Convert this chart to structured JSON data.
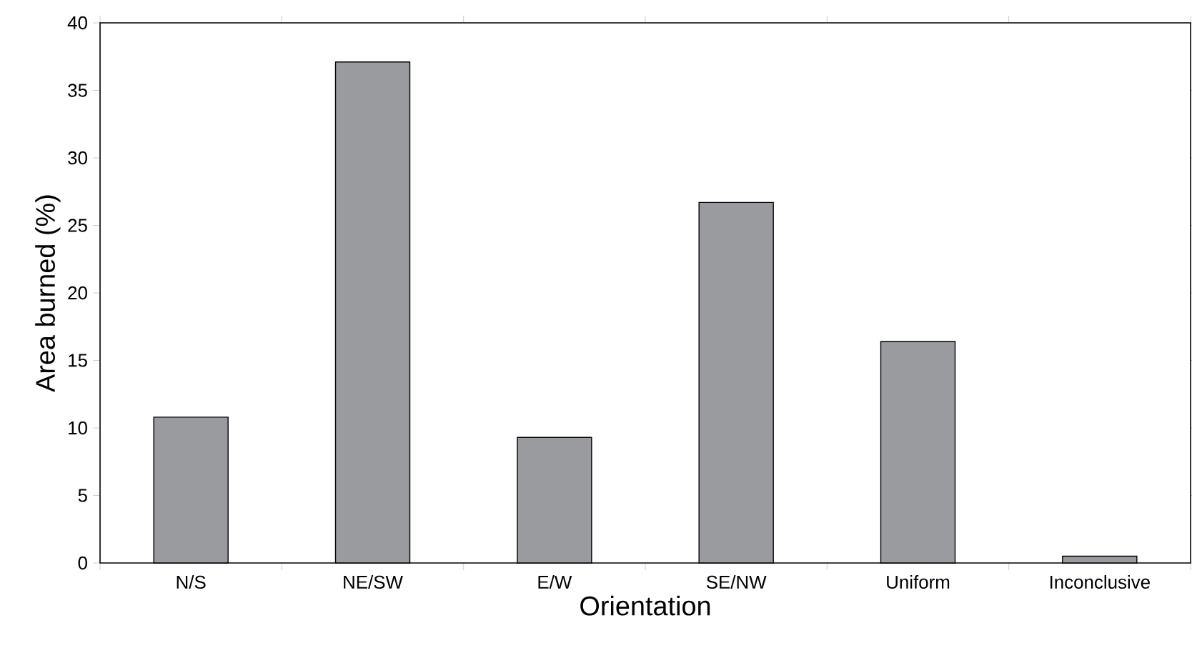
{
  "chart_data": {
    "type": "bar",
    "xlabel": "Orientation",
    "ylabel": "Area burned  (%)",
    "categories": [
      "N/S",
      "NE/SW",
      "E/W",
      "SE/NW",
      "Uniform",
      "Inconclusive"
    ],
    "values": [
      10.8,
      37.1,
      9.3,
      26.7,
      16.4,
      0.5
    ],
    "color": "#9a9b9f",
    "ylim": [
      0,
      40
    ],
    "yticks": [
      0,
      5,
      10,
      15,
      20,
      25,
      30,
      35,
      40
    ]
  }
}
